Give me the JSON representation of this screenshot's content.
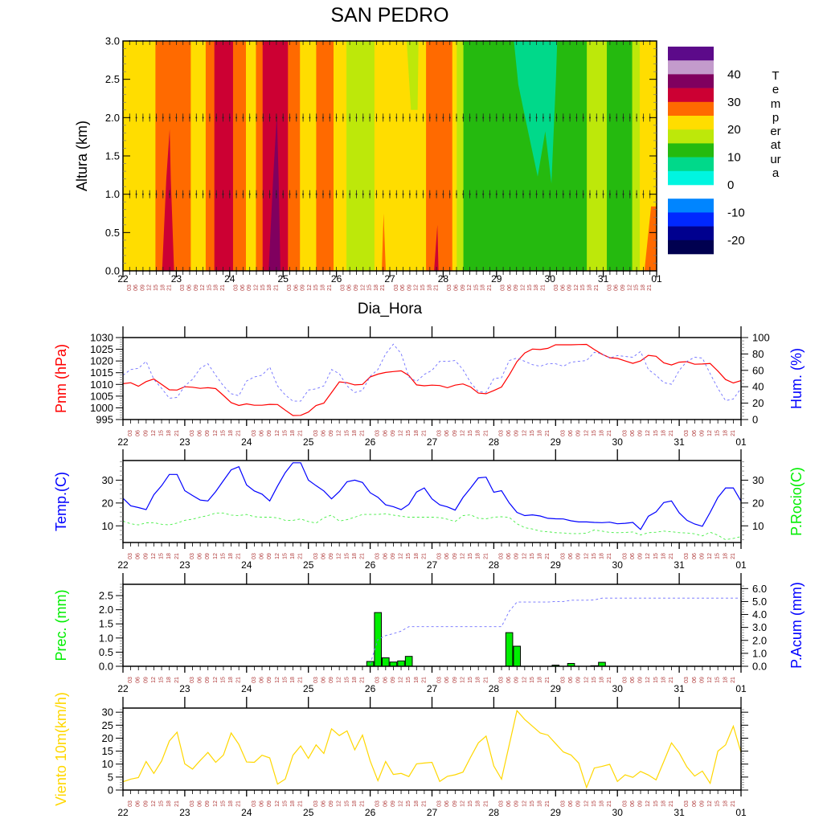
{
  "x_axis": {
    "day_labels": [
      "22",
      "23",
      "24",
      "25",
      "26",
      "27",
      "28",
      "29",
      "30",
      "31",
      "01"
    ],
    "hour_labels": [
      "03",
      "06",
      "09",
      "12",
      "15",
      "18",
      "21"
    ],
    "time_step_hours": 3
  },
  "chart_data": [
    {
      "type": "heatmap",
      "title": "SAN PEDRO",
      "xlabel": "Dia_Hora",
      "ylabel": "Altura (km)",
      "ylim": [
        0,
        3
      ],
      "xlim_hours": [
        0,
        240
      ],
      "yticks": [
        "0.0",
        "0.5",
        "1.0",
        "1.5",
        "2.0",
        "2.5",
        "3.0"
      ],
      "colors": {
        "Y": "#ffdd00",
        "O": "#ff6a00",
        "R": "#cc0033",
        "M": "#80005f",
        "YG": "#bde80a",
        "GR": "#25ba0f",
        "T": "#00d98a"
      },
      "bands": [
        [
          0,
          14.6,
          "Y"
        ],
        [
          14.6,
          30.5,
          "O"
        ],
        [
          30.5,
          37.2,
          "Y"
        ],
        [
          37.2,
          41.1,
          "O"
        ],
        [
          41.1,
          49.5,
          "R"
        ],
        [
          49.5,
          55.3,
          "O"
        ],
        [
          55.3,
          59.8,
          "Y"
        ],
        [
          59.8,
          62.8,
          "O"
        ],
        [
          62.8,
          74.2,
          "R"
        ],
        [
          74.2,
          79.6,
          "O"
        ],
        [
          79.6,
          86.9,
          "Y"
        ],
        [
          86.9,
          94.7,
          "O"
        ],
        [
          94.7,
          100.5,
          "Y"
        ],
        [
          100.5,
          113.1,
          "YG"
        ],
        [
          113.1,
          136.3,
          "Y"
        ],
        [
          136.3,
          148.1,
          "O"
        ],
        [
          148.1,
          150.1,
          "Y"
        ],
        [
          150.1,
          153.1,
          "YG"
        ],
        [
          153.1,
          208.6,
          "GR"
        ],
        [
          208.6,
          217.6,
          "YG"
        ],
        [
          217.6,
          229,
          "GR"
        ],
        [
          229,
          232.4,
          "YG"
        ],
        [
          232.4,
          240,
          "Y"
        ]
      ],
      "features": [
        {
          "color": "R",
          "points": [
            [
              17.6,
              0
            ],
            [
              19.5,
              1.2
            ],
            [
              21,
              1.85
            ],
            [
              21.5,
              1.2
            ],
            [
              23,
              0
            ]
          ]
        },
        {
          "color": "M",
          "points": [
            [
              65.5,
              0
            ],
            [
              67.5,
              1.2
            ],
            [
              69.2,
              2.05
            ],
            [
              70,
              1.2
            ],
            [
              70.8,
              0
            ]
          ]
        },
        {
          "color": "O",
          "points": [
            [
              116.4,
              0
            ],
            [
              117.2,
              0.75
            ],
            [
              118.2,
              0
            ]
          ]
        },
        {
          "color": "YG",
          "points": [
            [
              127.6,
              3
            ],
            [
              132.9,
              3
            ],
            [
              132.5,
              2.1
            ],
            [
              129.5,
              2.1
            ]
          ]
        },
        {
          "color": "R",
          "points": [
            [
              139.9,
              0
            ],
            [
              141.4,
              0.6
            ],
            [
              141.9,
              0
            ]
          ]
        },
        {
          "color": "T",
          "points": [
            [
              175.8,
              3
            ],
            [
              195.3,
              3
            ],
            [
              194.7,
              2.5
            ],
            [
              192.7,
              1.14
            ],
            [
              189.9,
              1.82
            ],
            [
              186.5,
              1.23
            ],
            [
              180.8,
              2.01
            ],
            [
              177.8,
              2.43
            ]
          ]
        },
        {
          "color": "O",
          "points": [
            [
              234.5,
              0
            ],
            [
              237.5,
              0.84
            ],
            [
              240,
              0.84
            ],
            [
              240,
              0
            ]
          ]
        }
      ],
      "wind_vector_levels_km": [
        0,
        1,
        2,
        3
      ],
      "colorbar": {
        "title": "Temperatura",
        "slot_colors": [
          "#5c0a8a",
          "#c39bcc",
          "#80005f",
          "#cc0033",
          "#ff6a00",
          "#ffdd00",
          "#bde80a",
          "#25ba0f",
          "#00d98a",
          "#00f5e0",
          "#ffffff",
          "#0085ff",
          "#0028ff",
          "#00008f",
          "#000050"
        ],
        "labels": [
          "40",
          "30",
          "20",
          "10",
          "0",
          "-10",
          "-20"
        ]
      }
    },
    {
      "type": "line",
      "ylabel_left": "Pnm (hPa)",
      "ylabel_right": "Hum. (%)",
      "ylim_left": [
        995,
        1030
      ],
      "ylim_right": [
        0,
        100
      ],
      "yticks_left": [
        "995",
        "1000",
        "1005",
        "1010",
        "1015",
        "1020",
        "1025",
        "1030"
      ],
      "yticks_right": [
        "0",
        "20",
        "40",
        "60",
        "80",
        "100"
      ],
      "series": [
        {
          "name": "Pnm (hPa)",
          "axis": "left",
          "color": "#ff0000",
          "dash": false,
          "values": [
            1010.3,
            1010.7,
            1009.2,
            1011.2,
            1012.3,
            1010,
            1007.7,
            1007.6,
            1009,
            1008.8,
            1008.3,
            1008.6,
            1008.2,
            1005.3,
            1002.2,
            1001,
            1001.7,
            1001.1,
            1001.1,
            1001.5,
            1001.4,
            999,
            996.7,
            996.8,
            998.2,
            1001,
            1002,
            1006.5,
            1011.1,
            1010.7,
            1009.8,
            1010,
            1013.2,
            1014.4,
            1015.1,
            1015.5,
            1015.8,
            1013.8,
            1009.8,
            1009.4,
            1009.7,
            1009.5,
            1008.6,
            1009.7,
            1010.2,
            1008.9,
            1006.3,
            1006,
            1007.4,
            1008.9,
            1014,
            1019.7,
            1023.4,
            1025.1,
            1024.9,
            1025.4,
            1026.9,
            1026.9,
            1026.9,
            1027,
            1027.1,
            1024.9,
            1022.9,
            1021.4,
            1021.1,
            1020,
            1019,
            1020,
            1022.4,
            1022,
            1019.2,
            1018.3,
            1019.5,
            1019.7,
            1018.6,
            1018.7,
            1018.9,
            1015.7,
            1012.1,
            1010.6,
            1011.6
          ]
        },
        {
          "name": "Hum. (%)",
          "axis": "right",
          "color": "#6f6fff",
          "dash": true,
          "values": [
            54,
            61,
            62.5,
            71,
            49,
            38,
            26,
            27,
            41,
            49,
            62.5,
            68,
            54,
            41,
            31.6,
            29,
            47,
            52,
            54,
            64,
            41,
            30,
            22.5,
            22.5,
            36,
            37.5,
            41,
            61,
            56,
            41,
            33,
            35.5,
            52.8,
            61,
            80,
            92,
            80.5,
            52,
            46.5,
            55,
            60,
            71,
            71,
            72,
            61,
            45,
            34,
            33,
            50,
            51,
            72,
            75,
            71,
            67,
            65,
            68,
            68,
            65,
            70,
            71,
            72,
            82,
            80,
            75,
            78,
            77,
            76,
            83,
            61,
            54,
            45,
            43,
            60,
            71,
            76,
            75,
            56,
            38,
            23,
            25,
            38
          ]
        }
      ]
    },
    {
      "type": "line",
      "ylabel_left": "Temp.(C)",
      "ylabel_right": "P.Rocio(C)",
      "ylim_left": [
        2.7,
        38.6
      ],
      "ylim_right": [
        2.7,
        38.6
      ],
      "yticks_left": [
        "10",
        "20",
        "30"
      ],
      "yticks_right": [
        "10",
        "20",
        "30"
      ],
      "series": [
        {
          "name": "Temp.(C)",
          "axis": "left",
          "color": "#0000ff",
          "dash": false,
          "values": [
            22.1,
            18.8,
            18,
            17.1,
            23.6,
            27.6,
            32.5,
            32.5,
            25.4,
            23.3,
            21.3,
            20.9,
            25,
            29.8,
            34.5,
            35.9,
            27.9,
            25.3,
            23.9,
            20.9,
            27.4,
            33.3,
            37.6,
            37.6,
            30,
            27.6,
            25.3,
            21.8,
            25,
            29.3,
            30,
            29,
            24.5,
            22.5,
            19.2,
            18.4,
            17.1,
            19.4,
            24.8,
            26.6,
            21.8,
            19.2,
            18.3,
            16.9,
            22.4,
            26.6,
            31,
            31.3,
            24.7,
            25.4,
            20,
            15.9,
            14.5,
            14.8,
            14.3,
            13.3,
            13.1,
            13,
            12.2,
            11.7,
            11.7,
            11.5,
            11.4,
            11.6,
            10.9,
            11.1,
            11.5,
            8.4,
            14.2,
            16.1,
            20.2,
            20.9,
            15.7,
            12.4,
            10.8,
            9.8,
            15.9,
            22.4,
            26.6,
            26.6,
            20.8
          ]
        },
        {
          "name": "P.Rocio(C)",
          "axis": "right",
          "color": "#44ee44",
          "dash": true,
          "values": [
            12.1,
            10.9,
            10.4,
            11.3,
            11.4,
            10.7,
            10.4,
            11.2,
            12.4,
            12.9,
            13.8,
            14.5,
            15.6,
            15.6,
            14.7,
            14.5,
            15,
            14,
            13.8,
            13.8,
            13.5,
            12.4,
            12.4,
            13,
            11.9,
            11.2,
            13.5,
            14.7,
            12.1,
            12.7,
            13.8,
            15,
            15,
            15,
            15.3,
            14.7,
            14.2,
            13.8,
            13.8,
            13.8,
            13.8,
            13.6,
            12.9,
            11.9,
            14.5,
            14.8,
            13.3,
            13.1,
            13.8,
            14,
            13.7,
            10.9,
            9.2,
            8.6,
            7.7,
            7.4,
            7,
            6.9,
            6.6,
            6.6,
            6.8,
            8.2,
            7.7,
            7.1,
            7,
            7.1,
            7.3,
            6,
            7,
            7.2,
            7.7,
            7.4,
            7,
            6.9,
            6.5,
            5.6,
            7.2,
            5.9,
            3.9,
            4.5,
            5.3
          ]
        }
      ]
    },
    {
      "type": "bar",
      "ylabel_left": "Prec. (mm)",
      "ylabel_right": "P.Acum (mm)",
      "ylim_left": [
        0,
        2.9
      ],
      "ylim_right": [
        0,
        6.33
      ],
      "yticks_left": [
        "0.0",
        "0.5",
        "1.0",
        "1.5",
        "2.0",
        "2.5"
      ],
      "yticks_right": [
        "0.0",
        "1.0",
        "2.0",
        "3.0",
        "4.0",
        "5.0",
        "6.0"
      ],
      "bar_color": "#00ee00",
      "bars": [
        0,
        0,
        0,
        0,
        0,
        0,
        0,
        0,
        0,
        0,
        0,
        0,
        0,
        0,
        0,
        0,
        0,
        0,
        0,
        0,
        0,
        0,
        0,
        0,
        0,
        0,
        0,
        0,
        0,
        0,
        0,
        0,
        0.17,
        1.9,
        0.3,
        0.15,
        0.19,
        0.35,
        0,
        0,
        0,
        0,
        0,
        0,
        0,
        0,
        0,
        0,
        0,
        0,
        1.19,
        0.71,
        0,
        0,
        0,
        0,
        0.04,
        0,
        0.1,
        0,
        0,
        0.02,
        0.14,
        0,
        0,
        0,
        0,
        0,
        0,
        0,
        0,
        0,
        0,
        0,
        0,
        0,
        0,
        0,
        0,
        0,
        0
      ],
      "series": [
        {
          "name": "P.Acum (mm)",
          "axis": "right",
          "color": "#6f6fff",
          "dash": true,
          "values": [
            null,
            null,
            null,
            null,
            null,
            null,
            null,
            null,
            null,
            null,
            null,
            null,
            null,
            null,
            null,
            null,
            null,
            null,
            null,
            null,
            null,
            null,
            null,
            null,
            null,
            null,
            null,
            null,
            null,
            null,
            null,
            null,
            0.17,
            2.07,
            2.37,
            2.52,
            2.71,
            3.06,
            3.06,
            3.06,
            3.06,
            3.06,
            3.06,
            3.06,
            3.06,
            3.06,
            3.06,
            3.06,
            3.06,
            3.06,
            4.25,
            4.96,
            4.96,
            4.96,
            4.96,
            4.96,
            5.0,
            5.0,
            5.1,
            5.1,
            5.1,
            5.12,
            5.26,
            5.26,
            5.26,
            5.26,
            5.26,
            5.26,
            5.26,
            5.26,
            5.26,
            5.26,
            5.26,
            5.26,
            5.26,
            5.26,
            5.26,
            5.26,
            5.26,
            5.26,
            5.26
          ]
        }
      ]
    },
    {
      "type": "line",
      "ylabel_left": "Viento 10m(km/h)",
      "ylim_left": [
        0,
        31.6
      ],
      "yticks_left": [
        "0",
        "5",
        "10",
        "15",
        "20",
        "25",
        "30"
      ],
      "series": [
        {
          "name": "Viento 10m(km/h)",
          "axis": "left",
          "color": "#ffd700",
          "dash": false,
          "values": [
            3.2,
            4.2,
            4.8,
            11,
            6.4,
            11.2,
            18.9,
            22.3,
            10.1,
            8.1,
            11.4,
            14.5,
            10.7,
            13.5,
            22,
            17.6,
            10.8,
            10.7,
            13.4,
            12.4,
            2.3,
            4.2,
            13.4,
            17,
            12.2,
            17.4,
            14.1,
            23.6,
            21,
            22.8,
            15.5,
            21.2,
            11.2,
            3.6,
            11,
            6,
            6.4,
            5.2,
            10.1,
            10.4,
            10.7,
            3.3,
            5.3,
            5.9,
            6.9,
            12.7,
            18.2,
            20.8,
            9.3,
            4.2,
            17.4,
            30.6,
            27.2,
            24.6,
            22,
            21.2,
            17.9,
            14.7,
            13.5,
            10.4,
            1,
            8.5,
            9.1,
            9.9,
            3.3,
            5.9,
            4.9,
            7.2,
            5.8,
            3.9,
            11,
            18.2,
            14.3,
            8.9,
            5.4,
            7.3,
            2.6,
            15,
            17.4,
            24.6,
            14.5
          ]
        }
      ]
    }
  ],
  "label_colors": {
    "Pnm (hPa)": "#ff0000",
    "Hum. (%)": "#0000ff",
    "Temp.(C)": "#0000ff",
    "P.Rocio(C)": "#00ee00",
    "Prec. (mm)": "#00ee00",
    "P.Acum (mm)": "#0000ff",
    "Viento 10m(km/h)": "#ffd700"
  }
}
